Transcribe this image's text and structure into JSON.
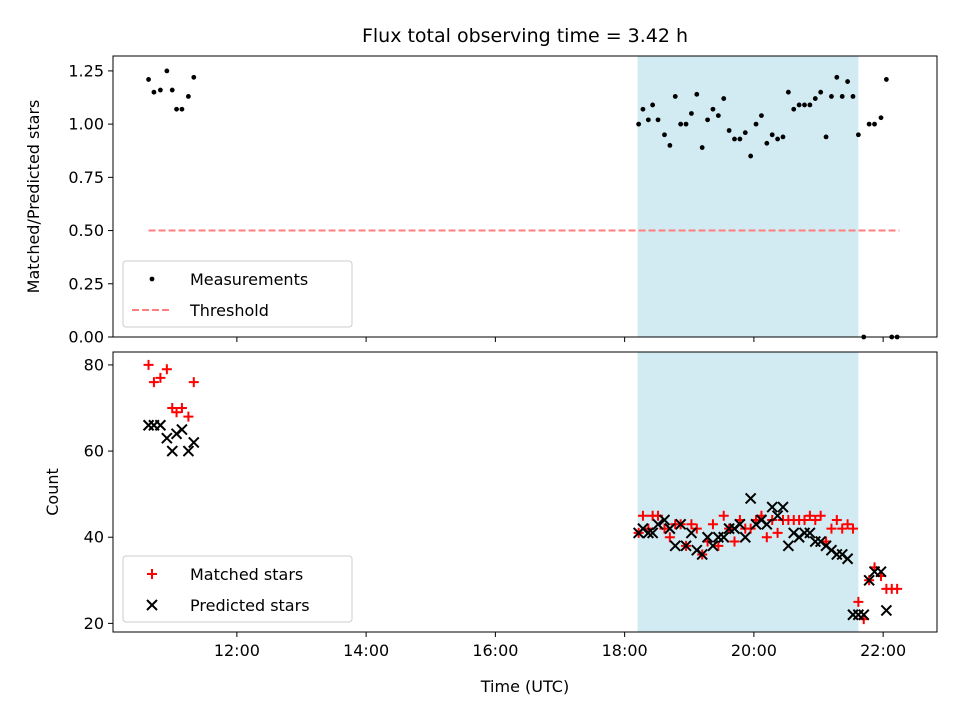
{
  "chart_data": {
    "type": "scatter",
    "title": "Flux total observing time = 3.42 h",
    "xlabel": "Time (UTC)",
    "x_unit": "hours UTC",
    "xlim": [
      "10:05",
      "22:50"
    ],
    "x_ticks": [
      "12:00",
      "14:00",
      "16:00",
      "18:00",
      "20:00",
      "22:00"
    ],
    "shaded_interval": {
      "start": "18:12",
      "end": "21:37",
      "color": "#add8e6"
    },
    "panels": [
      {
        "name": "ratio",
        "ylabel": "Matched/Predicted stars",
        "ylim": [
          0,
          1.32
        ],
        "y_ticks": [
          "0.00",
          "0.25",
          "0.50",
          "0.75",
          "1.00",
          "1.25"
        ],
        "legend_position": "lower-left",
        "series": [
          {
            "name": "Measurements",
            "marker": "dot",
            "color": "#000000",
            "points": [
              [
                "10:38",
                1.21
              ],
              [
                "10:43",
                1.15
              ],
              [
                "10:49",
                1.16
              ],
              [
                "10:55",
                1.25
              ],
              [
                "11:00",
                1.16
              ],
              [
                "11:04",
                1.07
              ],
              [
                "11:09",
                1.07
              ],
              [
                "11:15",
                1.13
              ],
              [
                "11:20",
                1.22
              ],
              [
                "18:13",
                1.0
              ],
              [
                "18:17",
                1.07
              ],
              [
                "18:22",
                1.02
              ],
              [
                "18:26",
                1.09
              ],
              [
                "18:31",
                1.02
              ],
              [
                "18:37",
                0.95
              ],
              [
                "18:42",
                0.9
              ],
              [
                "18:47",
                1.13
              ],
              [
                "18:52",
                1.0
              ],
              [
                "18:57",
                1.0
              ],
              [
                "19:02",
                1.05
              ],
              [
                "19:07",
                1.14
              ],
              [
                "19:12",
                0.89
              ],
              [
                "19:17",
                1.02
              ],
              [
                "19:22",
                1.07
              ],
              [
                "19:27",
                1.04
              ],
              [
                "19:32",
                1.12
              ],
              [
                "19:37",
                0.97
              ],
              [
                "19:42",
                0.93
              ],
              [
                "19:47",
                0.93
              ],
              [
                "19:52",
                0.96
              ],
              [
                "19:57",
                0.85
              ],
              [
                "20:02",
                1.0
              ],
              [
                "20:07",
                1.04
              ],
              [
                "20:12",
                0.91
              ],
              [
                "20:17",
                0.95
              ],
              [
                "20:22",
                0.93
              ],
              [
                "20:27",
                0.94
              ],
              [
                "20:32",
                1.15
              ],
              [
                "20:37",
                1.07
              ],
              [
                "20:42",
                1.09
              ],
              [
                "20:47",
                1.09
              ],
              [
                "20:52",
                1.09
              ],
              [
                "20:57",
                1.12
              ],
              [
                "21:02",
                1.15
              ],
              [
                "21:07",
                0.94
              ],
              [
                "21:12",
                1.13
              ],
              [
                "21:17",
                1.22
              ],
              [
                "21:22",
                1.13
              ],
              [
                "21:27",
                1.2
              ],
              [
                "21:32",
                1.13
              ],
              [
                "21:37",
                0.95
              ],
              [
                "21:47",
                1.0
              ],
              [
                "21:52",
                1.0
              ],
              [
                "21:58",
                1.03
              ],
              [
                "22:03",
                1.21
              ],
              [
                "21:42",
                0.0
              ],
              [
                "22:08",
                0.0
              ],
              [
                "22:13",
                0.0
              ]
            ]
          },
          {
            "name": "Threshold",
            "marker": "dashed-line",
            "color": "#ff7f7f",
            "points": [
              [
                "10:38",
                0.5
              ],
              [
                "22:15",
                0.5
              ]
            ]
          }
        ]
      },
      {
        "name": "counts",
        "ylabel": "Count",
        "ylim": [
          18,
          83
        ],
        "y_ticks": [
          "20",
          "40",
          "60",
          "80"
        ],
        "legend_position": "lower-left",
        "series": [
          {
            "name": "Matched stars",
            "marker": "plus",
            "color": "#ff0000",
            "points": [
              [
                "10:38",
                80
              ],
              [
                "10:43",
                76
              ],
              [
                "10:49",
                77
              ],
              [
                "10:55",
                79
              ],
              [
                "11:00",
                70
              ],
              [
                "11:04",
                69
              ],
              [
                "11:09",
                70
              ],
              [
                "11:15",
                68
              ],
              [
                "11:20",
                76
              ],
              [
                "18:13",
                41
              ],
              [
                "18:17",
                45
              ],
              [
                "18:22",
                42
              ],
              [
                "18:26",
                45
              ],
              [
                "18:31",
                45
              ],
              [
                "18:37",
                42
              ],
              [
                "18:42",
                40
              ],
              [
                "18:47",
                43
              ],
              [
                "18:52",
                43
              ],
              [
                "18:57",
                38
              ],
              [
                "19:02",
                43
              ],
              [
                "19:07",
                42
              ],
              [
                "19:12",
                36
              ],
              [
                "19:17",
                39
              ],
              [
                "19:22",
                43
              ],
              [
                "19:27",
                38
              ],
              [
                "19:32",
                45
              ],
              [
                "19:37",
                42
              ],
              [
                "19:42",
                39
              ],
              [
                "19:47",
                44
              ],
              [
                "19:52",
                42
              ],
              [
                "19:57",
                42
              ],
              [
                "20:02",
                44
              ],
              [
                "20:07",
                45
              ],
              [
                "20:12",
                40
              ],
              [
                "20:17",
                44
              ],
              [
                "20:22",
                41
              ],
              [
                "20:27",
                44
              ],
              [
                "20:32",
                44
              ],
              [
                "20:37",
                44
              ],
              [
                "20:42",
                44
              ],
              [
                "20:47",
                44
              ],
              [
                "20:52",
                45
              ],
              [
                "20:57",
                44
              ],
              [
                "21:02",
                45
              ],
              [
                "21:07",
                39
              ],
              [
                "21:12",
                42
              ],
              [
                "21:17",
                44
              ],
              [
                "21:22",
                42
              ],
              [
                "21:27",
                43
              ],
              [
                "21:32",
                42
              ],
              [
                "21:37",
                25
              ],
              [
                "21:42",
                21
              ],
              [
                "21:47",
                30
              ],
              [
                "21:52",
                33
              ],
              [
                "21:58",
                31
              ],
              [
                "22:03",
                28
              ],
              [
                "22:08",
                28
              ],
              [
                "22:13",
                28
              ]
            ]
          },
          {
            "name": "Predicted stars",
            "marker": "x",
            "color": "#000000",
            "points": [
              [
                "10:38",
                66
              ],
              [
                "10:43",
                66
              ],
              [
                "10:49",
                66
              ],
              [
                "10:55",
                63
              ],
              [
                "11:00",
                60
              ],
              [
                "11:04",
                64
              ],
              [
                "11:09",
                65
              ],
              [
                "11:15",
                60
              ],
              [
                "11:20",
                62
              ],
              [
                "18:13",
                41
              ],
              [
                "18:17",
                42
              ],
              [
                "18:22",
                41
              ],
              [
                "18:26",
                41
              ],
              [
                "18:31",
                43
              ],
              [
                "18:37",
                44
              ],
              [
                "18:42",
                42
              ],
              [
                "18:47",
                38
              ],
              [
                "18:52",
                43
              ],
              [
                "18:57",
                38
              ],
              [
                "19:02",
                41
              ],
              [
                "19:07",
                37
              ],
              [
                "19:12",
                36
              ],
              [
                "19:17",
                40
              ],
              [
                "19:22",
                38
              ],
              [
                "19:27",
                40
              ],
              [
                "19:32",
                40
              ],
              [
                "19:37",
                42
              ],
              [
                "19:42",
                42
              ],
              [
                "19:47",
                43
              ],
              [
                "19:52",
                40
              ],
              [
                "19:57",
                49
              ],
              [
                "20:02",
                43
              ],
              [
                "20:07",
                44
              ],
              [
                "20:12",
                43
              ],
              [
                "20:17",
                47
              ],
              [
                "20:22",
                45
              ],
              [
                "20:27",
                47
              ],
              [
                "20:32",
                38
              ],
              [
                "20:37",
                41
              ],
              [
                "20:42",
                40
              ],
              [
                "20:47",
                41
              ],
              [
                "20:52",
                41
              ],
              [
                "20:57",
                39
              ],
              [
                "21:02",
                39
              ],
              [
                "21:07",
                38
              ],
              [
                "21:12",
                37
              ],
              [
                "21:17",
                36
              ],
              [
                "21:22",
                36
              ],
              [
                "21:27",
                35
              ],
              [
                "21:32",
                22
              ],
              [
                "21:37",
                22
              ],
              [
                "21:42",
                22
              ],
              [
                "21:47",
                30
              ],
              [
                "21:52",
                32
              ],
              [
                "21:58",
                32
              ],
              [
                "22:03",
                23
              ]
            ]
          }
        ]
      }
    ]
  }
}
